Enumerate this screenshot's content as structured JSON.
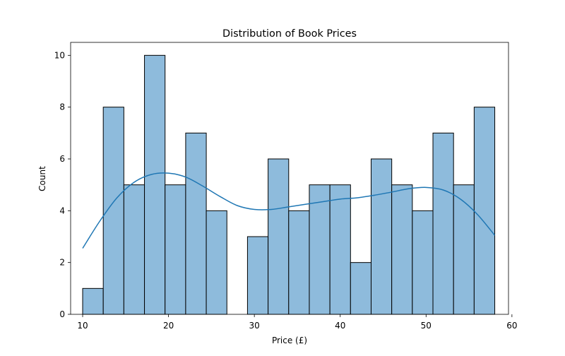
{
  "chart_data": {
    "type": "histogram",
    "title": "Distribution of Book Prices",
    "xlabel": "Price (£)",
    "ylabel": "Count",
    "xlim": [
      8.6,
      59.6
    ],
    "ylim": [
      0,
      10.5
    ],
    "xticks": [
      10,
      20,
      30,
      40,
      50,
      60
    ],
    "yticks": [
      0,
      2,
      4,
      6,
      8,
      10
    ],
    "bin_start": 10.0,
    "bin_width": 2.4,
    "counts": [
      1,
      8,
      5,
      10,
      5,
      7,
      4,
      0,
      3,
      6,
      4,
      5,
      5,
      2,
      6,
      5,
      4,
      7,
      5,
      8
    ],
    "kde": {
      "x": [
        10,
        12,
        14,
        16,
        18,
        20,
        22,
        24,
        26,
        28,
        30,
        32,
        34,
        36,
        38,
        40,
        42,
        44,
        46,
        48,
        50,
        52,
        54,
        56,
        58
      ],
      "y": [
        2.55,
        3.6,
        4.5,
        5.1,
        5.4,
        5.45,
        5.3,
        4.95,
        4.55,
        4.2,
        4.05,
        4.05,
        4.15,
        4.25,
        4.35,
        4.45,
        4.5,
        4.6,
        4.72,
        4.85,
        4.9,
        4.8,
        4.45,
        3.85,
        3.05
      ]
    },
    "colors": {
      "bar_fill": "#8ebbdc",
      "bar_edge": "#000000",
      "kde_line": "#1f77b4",
      "axes": "#000000"
    },
    "grid": false
  }
}
